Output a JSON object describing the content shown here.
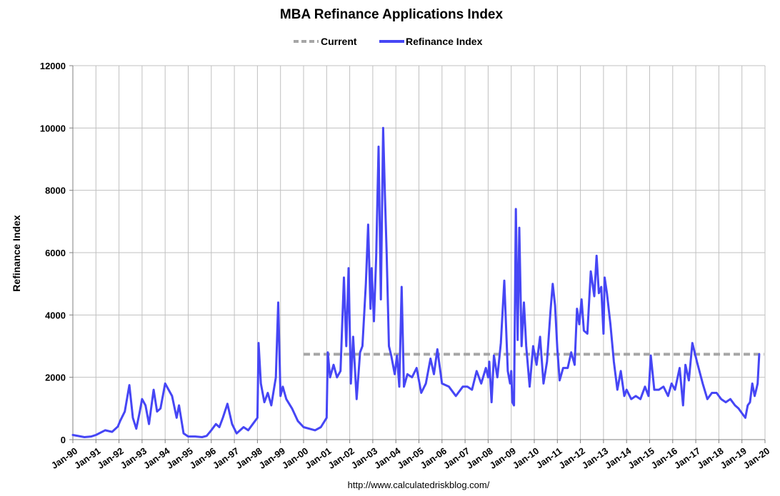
{
  "chart_data": {
    "type": "line",
    "title": "MBA Refinance Applications Index",
    "ylabel": "Refinance Index",
    "xlabel": "",
    "ylim": [
      0,
      12000
    ],
    "yticks": [
      0,
      2000,
      4000,
      6000,
      8000,
      10000,
      12000
    ],
    "ytick_labels": [
      "0",
      "2000",
      "4000",
      "6000",
      "8000",
      "10000",
      "12000"
    ],
    "xlim": [
      1990,
      2020
    ],
    "xticks": [
      1990,
      1991,
      1992,
      1993,
      1994,
      1995,
      1996,
      1997,
      1998,
      1999,
      2000,
      2001,
      2002,
      2003,
      2004,
      2005,
      2006,
      2007,
      2008,
      2009,
      2010,
      2011,
      2012,
      2013,
      2014,
      2015,
      2016,
      2017,
      2018,
      2019,
      2020
    ],
    "xtick_labels": [
      "Jan-90",
      "Jan-91",
      "Jan-92",
      "Jan-93",
      "Jan-94",
      "Jan-95",
      "Jan-96",
      "Jan-97",
      "Jan-98",
      "Jan-99",
      "Jan-00",
      "Jan-01",
      "Jan-02",
      "Jan-03",
      "Jan-04",
      "Jan-05",
      "Jan-06",
      "Jan-07",
      "Jan-08",
      "Jan-09",
      "Jan-10",
      "Jan-11",
      "Jan-12",
      "Jan-13",
      "Jan-14",
      "Jan-15",
      "Jan-16",
      "Jan-17",
      "Jan-18",
      "Jan-19",
      "Jan-20"
    ],
    "grid": true,
    "legend_position": "top-center",
    "series": [
      {
        "name": "Current",
        "color": "#a6a6a6",
        "style": "dashed",
        "x": [
          2000.0,
          2019.96
        ],
        "y": [
          2740,
          2740
        ]
      },
      {
        "name": "Refinance Index",
        "color": "#4646f5",
        "style": "solid",
        "x": [
          1990.0,
          1990.5,
          1990.8,
          1991.0,
          1991.4,
          1991.7,
          1991.95,
          1992.05,
          1992.25,
          1992.45,
          1992.6,
          1992.75,
          1992.9,
          1993.0,
          1993.15,
          1993.3,
          1993.5,
          1993.65,
          1993.8,
          1994.0,
          1994.3,
          1994.5,
          1994.6,
          1994.8,
          1995.0,
          1995.3,
          1995.6,
          1995.8,
          1996.0,
          1996.2,
          1996.35,
          1996.5,
          1996.7,
          1996.9,
          1997.1,
          1997.4,
          1997.6,
          1997.8,
          1998.0,
          1998.05,
          1998.15,
          1998.3,
          1998.45,
          1998.6,
          1998.8,
          1998.9,
          1999.0,
          1999.1,
          1999.25,
          1999.5,
          1999.75,
          2000.0,
          2000.5,
          2000.75,
          2001.0,
          2001.05,
          2001.15,
          2001.3,
          2001.45,
          2001.6,
          2001.75,
          2001.85,
          2001.95,
          2002.05,
          2002.15,
          2002.3,
          2002.45,
          2002.55,
          2002.7,
          2002.8,
          2002.9,
          2002.95,
          2003.05,
          2003.15,
          2003.25,
          2003.35,
          2003.45,
          2003.52,
          2003.6,
          2003.7,
          2003.8,
          2003.95,
          2004.05,
          2004.15,
          2004.25,
          2004.35,
          2004.5,
          2004.7,
          2004.9,
          2005.1,
          2005.3,
          2005.5,
          2005.65,
          2005.8,
          2006.0,
          2006.3,
          2006.6,
          2006.9,
          2007.1,
          2007.3,
          2007.5,
          2007.7,
          2007.9,
          2008.0,
          2008.05,
          2008.15,
          2008.25,
          2008.4,
          2008.55,
          2008.7,
          2008.85,
          2008.95,
          2009.0,
          2009.05,
          2009.12,
          2009.2,
          2009.28,
          2009.35,
          2009.45,
          2009.55,
          2009.65,
          2009.8,
          2009.95,
          2010.1,
          2010.25,
          2010.4,
          2010.55,
          2010.7,
          2010.8,
          2010.9,
          2011.0,
          2011.1,
          2011.25,
          2011.45,
          2011.6,
          2011.75,
          2011.85,
          2011.95,
          2012.05,
          2012.15,
          2012.3,
          2012.45,
          2012.6,
          2012.7,
          2012.8,
          2012.9,
          2013.0,
          2013.05,
          2013.15,
          2013.3,
          2013.45,
          2013.6,
          2013.75,
          2013.9,
          2014.0,
          2014.2,
          2014.4,
          2014.6,
          2014.8,
          2014.95,
          2015.05,
          2015.2,
          2015.4,
          2015.6,
          2015.8,
          2015.95,
          2016.1,
          2016.3,
          2016.45,
          2016.55,
          2016.7,
          2016.85,
          2016.95,
          2017.05,
          2017.3,
          2017.5,
          2017.7,
          2017.9,
          2018.1,
          2018.3,
          2018.5,
          2018.7,
          2018.85,
          2018.95,
          2019.05,
          2019.15,
          2019.25,
          2019.35,
          2019.45,
          2019.55,
          2019.62,
          2019.68,
          2019.75
        ],
        "y": [
          150,
          80,
          100,
          150,
          300,
          250,
          420,
          600,
          900,
          1750,
          700,
          350,
          900,
          1300,
          1100,
          500,
          1600,
          900,
          1000,
          1800,
          1400,
          700,
          1100,
          200,
          100,
          100,
          80,
          120,
          300,
          500,
          400,
          700,
          1150,
          500,
          200,
          400,
          300,
          500,
          700,
          3100,
          1800,
          1200,
          1500,
          1100,
          2000,
          4400,
          1400,
          1700,
          1300,
          1000,
          600,
          400,
          300,
          400,
          700,
          2800,
          2000,
          2400,
          2000,
          2200,
          5200,
          3000,
          5500,
          1800,
          3300,
          1300,
          2800,
          3000,
          5000,
          6900,
          4200,
          5500,
          3800,
          5900,
          9400,
          4500,
          10000,
          8000,
          6000,
          3000,
          2700,
          2100,
          2700,
          1700,
          4900,
          1700,
          2100,
          2000,
          2300,
          1500,
          1800,
          2600,
          2100,
          2900,
          1800,
          1700,
          1400,
          1700,
          1700,
          1600,
          2200,
          1800,
          2300,
          2000,
          2500,
          1200,
          2700,
          2000,
          3100,
          5100,
          2200,
          1800,
          2200,
          1200,
          1100,
          7400,
          3200,
          6800,
          3000,
          4400,
          3000,
          1700,
          3000,
          2400,
          3300,
          1800,
          2500,
          4100,
          5000,
          4300,
          2900,
          1900,
          2300,
          2300,
          2800,
          2400,
          4200,
          3700,
          4500,
          3500,
          3400,
          5400,
          4600,
          5900,
          4700,
          4900,
          3400,
          5200,
          4700,
          3700,
          2500,
          1600,
          2200,
          1400,
          1600,
          1300,
          1400,
          1300,
          1700,
          1400,
          2700,
          1600,
          1600,
          1700,
          1400,
          1800,
          1600,
          2300,
          1100,
          2400,
          1900,
          3100,
          2800,
          2500,
          1800,
          1300,
          1500,
          1500,
          1300,
          1200,
          1300,
          1100,
          1000,
          900,
          800,
          700,
          1100,
          1200,
          1800,
          1400,
          1600,
          1800,
          2740
        ]
      }
    ],
    "source_text": "http://www.calculatedriskblog.com/"
  },
  "legend": {
    "items": [
      {
        "label": "Current",
        "style": "dashed",
        "color": "#a6a6a6"
      },
      {
        "label": "Refinance Index",
        "style": "solid",
        "color": "#4646f5"
      }
    ]
  },
  "colors": {
    "grid": "#c0c0c0",
    "axis": "#808080"
  }
}
